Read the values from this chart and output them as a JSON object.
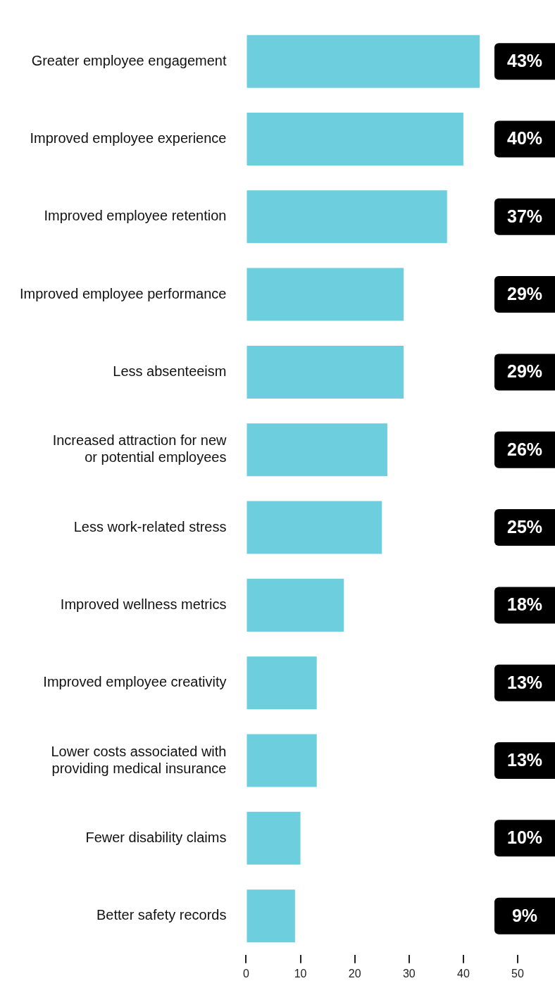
{
  "chart_data": {
    "type": "bar",
    "orientation": "horizontal",
    "categories": [
      "Greater employee engagement",
      "Improved employee experience",
      "Improved employee retention",
      "Improved employee performance",
      "Less absenteeism",
      "Increased attraction for new\nor potential employees",
      "Less work-related stress",
      "Improved wellness metrics",
      "Improved employee creativity",
      "Lower costs associated with\nproviding medical insurance",
      "Fewer disability claims",
      "Better safety records"
    ],
    "values": [
      43,
      40,
      37,
      29,
      29,
      26,
      25,
      18,
      13,
      13,
      10,
      9
    ],
    "value_labels": [
      "43%",
      "40%",
      "37%",
      "29%",
      "29%",
      "26%",
      "25%",
      "18%",
      "13%",
      "13%",
      "10%",
      "9%"
    ],
    "color": "#6dcfdd",
    "xlim": [
      0,
      50
    ],
    "xticks": [
      0,
      10,
      20,
      30,
      40,
      50
    ]
  }
}
